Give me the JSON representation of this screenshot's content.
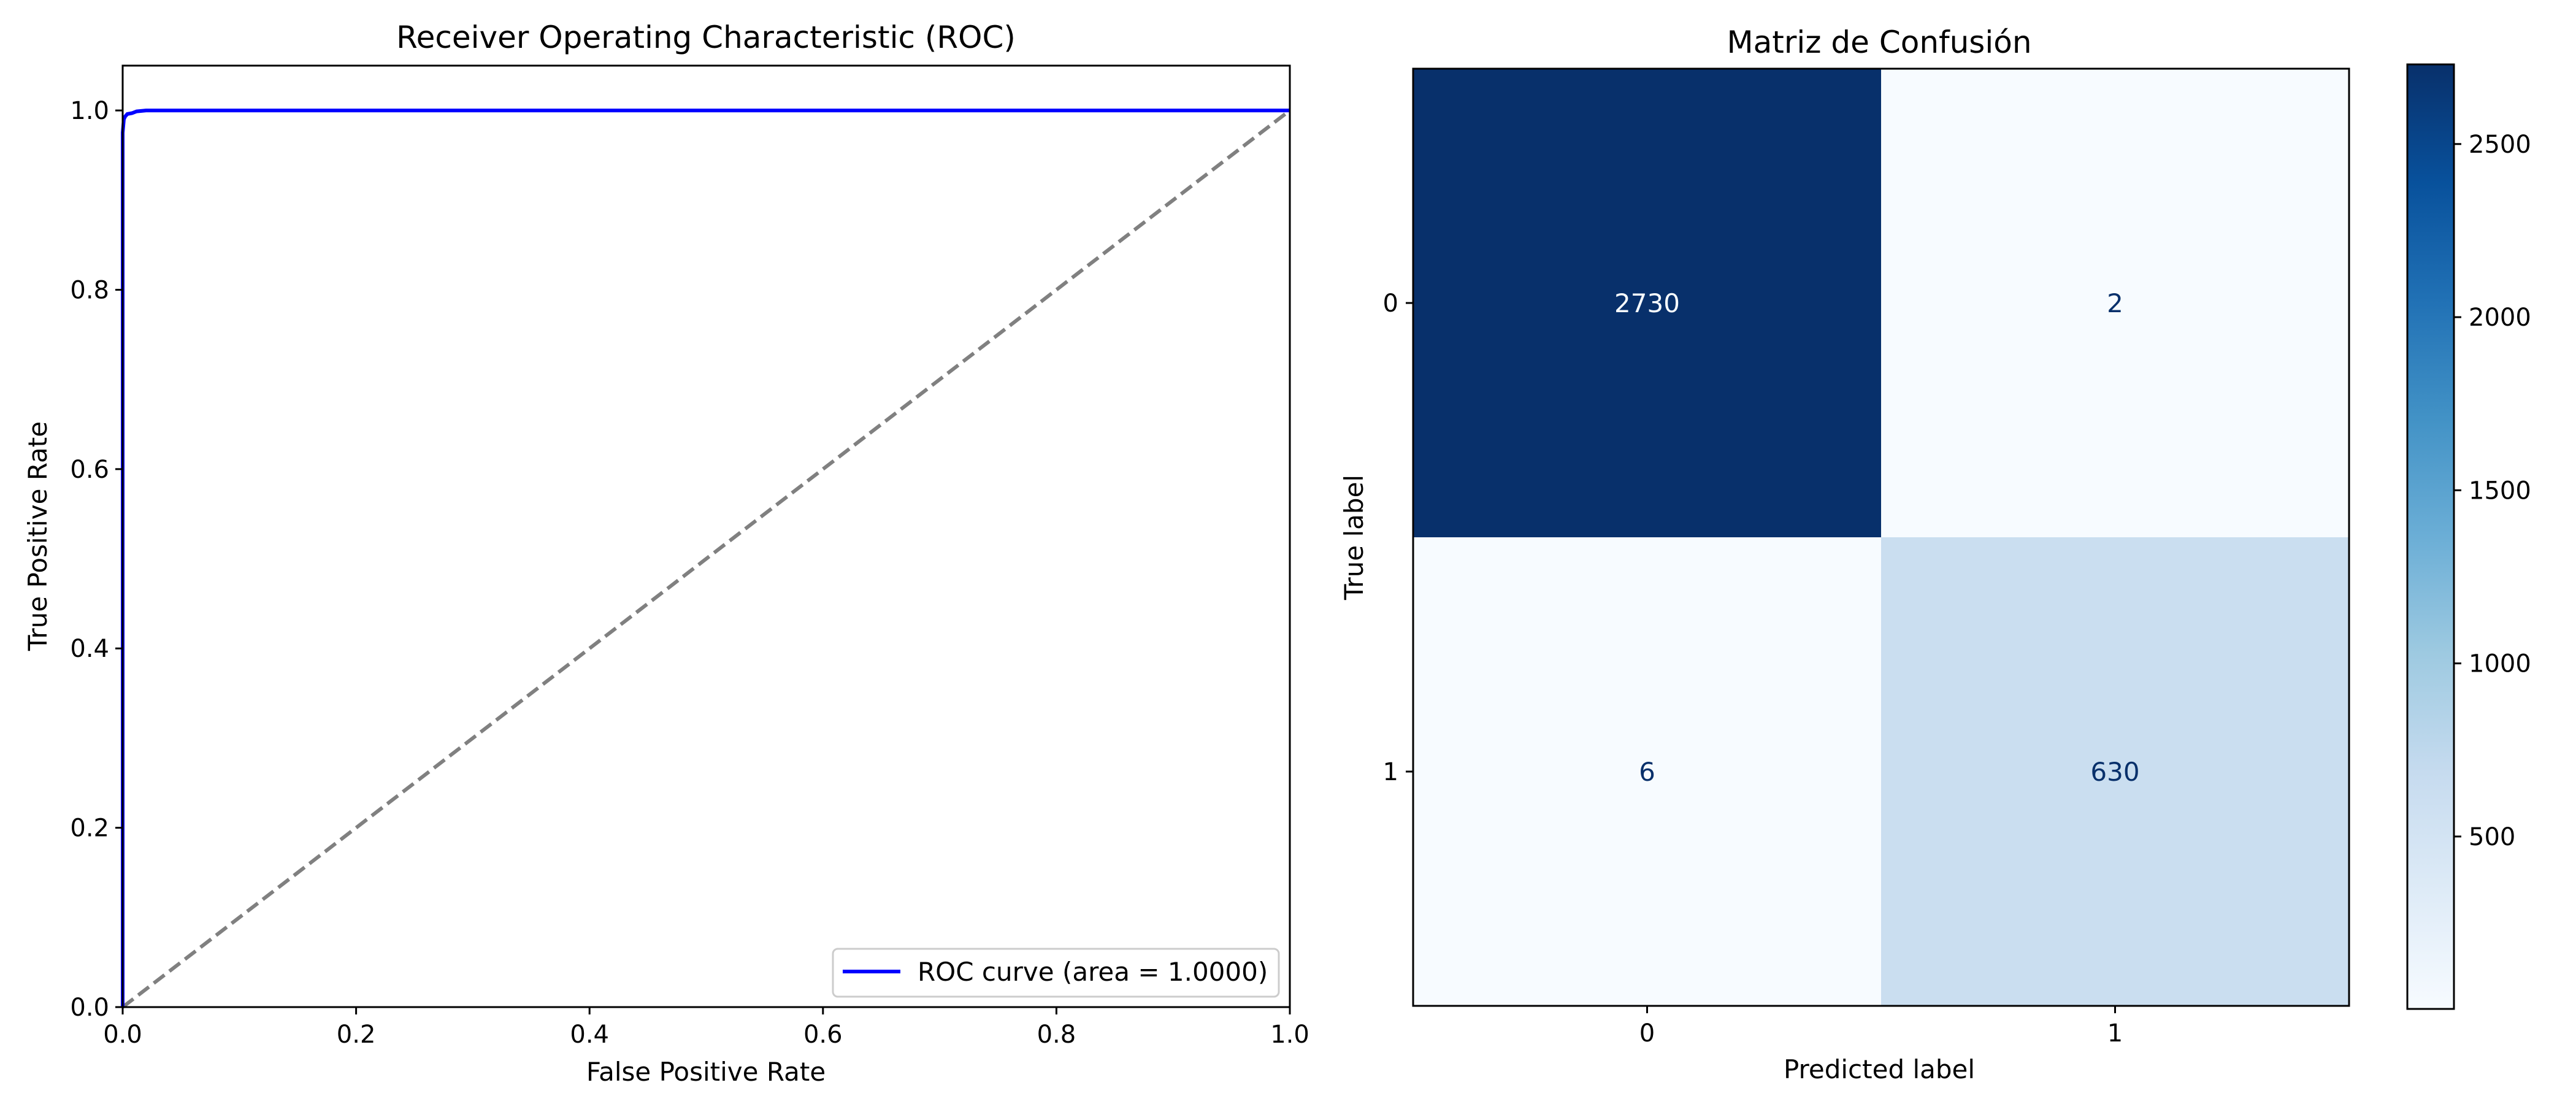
{
  "chart_data": [
    {
      "type": "line",
      "title": "Receiver Operating Characteristic (ROC)",
      "xlabel": "False Positive Rate",
      "ylabel": "True Positive Rate",
      "xlim": [
        0.0,
        1.0
      ],
      "ylim": [
        0.0,
        1.05
      ],
      "xticks": [
        "0.0",
        "0.2",
        "0.4",
        "0.6",
        "0.8",
        "1.0"
      ],
      "yticks": [
        "0.0",
        "0.2",
        "0.4",
        "0.6",
        "0.8",
        "1.0"
      ],
      "grid": false,
      "legend_position": "lower-right",
      "series": [
        {
          "name": "ROC curve (area = 1.0000)",
          "color": "#0000ff",
          "x": [
            0.0,
            0.0,
            0.001,
            0.002,
            0.004,
            0.008,
            0.012,
            0.02,
            1.0
          ],
          "y": [
            0.0,
            0.975,
            0.99,
            0.993,
            0.996,
            0.997,
            0.999,
            1.0,
            1.0
          ]
        },
        {
          "name": "",
          "color": "#808080",
          "style": "dashed",
          "x": [
            0.0,
            1.0
          ],
          "y": [
            0.0,
            1.0
          ]
        }
      ]
    },
    {
      "type": "heatmap",
      "title": "Matriz de Confusión",
      "xlabel": "Predicted label",
      "ylabel": "True label",
      "x_categories": [
        "0",
        "1"
      ],
      "y_categories": [
        "0",
        "1"
      ],
      "values": [
        [
          2730,
          2
        ],
        [
          6,
          630
        ]
      ],
      "colormap": "Blues",
      "colorbar_range": [
        2,
        2730
      ],
      "colorbar_ticks": [
        500,
        1000,
        1500,
        2000,
        2500
      ]
    }
  ]
}
